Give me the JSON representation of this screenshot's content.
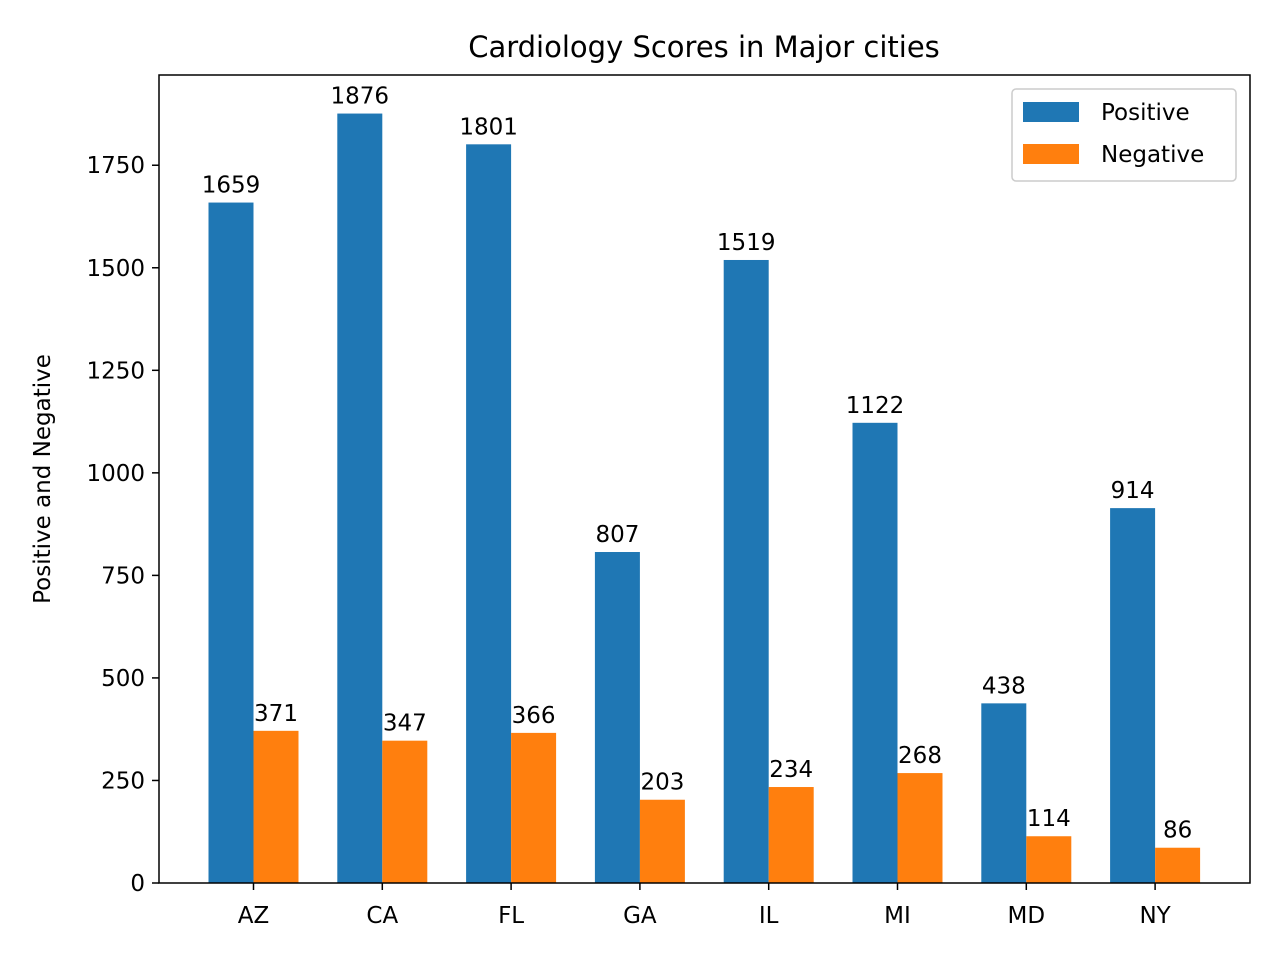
{
  "chart_data": {
    "type": "bar",
    "title": "Cardiology Scores in Major cities",
    "xlabel": "",
    "ylabel": "Positive and Negative",
    "categories": [
      "AZ",
      "CA",
      "FL",
      "GA",
      "IL",
      "MI",
      "MD",
      "NY"
    ],
    "series": [
      {
        "name": "Positive",
        "values": [
          1659,
          1876,
          1801,
          807,
          1519,
          1122,
          438,
          914
        ],
        "color": "#1f77b4"
      },
      {
        "name": "Negative",
        "values": [
          371,
          347,
          366,
          203,
          234,
          268,
          114,
          86
        ],
        "color": "#ff7f0e"
      }
    ],
    "ylim": [
      0,
      1970
    ],
    "yticks": [
      0,
      250,
      500,
      750,
      1000,
      1250,
      1500,
      1750
    ],
    "grid": false,
    "legend_position": "top-right",
    "data_labels": true
  }
}
